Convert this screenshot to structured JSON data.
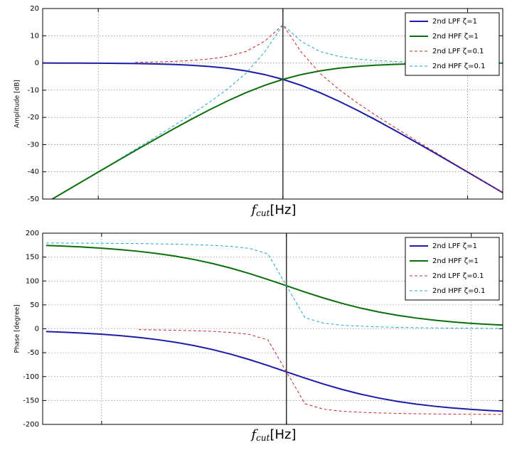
{
  "chart_data": [
    {
      "type": "line",
      "y_label": "Amplitude [dB]",
      "x_label": {
        "symbol": "f",
        "subscript": "cut",
        "unit": "[Hz]"
      },
      "xscale": "log",
      "xlim": [
        0.05,
        15.5
      ],
      "xticks": [
        0.1,
        1,
        10
      ],
      "vline": 1,
      "ylim": [
        -50,
        20
      ],
      "yticks": [
        -50,
        -40,
        -30,
        -20,
        -10,
        0,
        10,
        20
      ],
      "grid": true,
      "legend": "upper right",
      "x": [
        0.05012,
        0.0631,
        0.07943,
        0.1,
        0.1259,
        0.1585,
        0.1995,
        0.2512,
        0.3162,
        0.3981,
        0.5012,
        0.631,
        0.7943,
        1,
        1.259,
        1.585,
        1.995,
        2.512,
        3.162,
        3.981,
        5.012,
        6.31,
        7.943,
        10,
        12.59,
        15.85
      ],
      "series": [
        {
          "name": "2nd LPF ζ=1",
          "color": "#1c1ca8",
          "linestyle": "solid",
          "values": [
            -0.022,
            -0.035,
            -0.055,
            -0.086,
            -0.137,
            -0.215,
            -0.339,
            -0.531,
            -0.828,
            -1.278,
            -1.947,
            -2.911,
            -4.249,
            -6.021,
            -8.249,
            -10.911,
            -13.947,
            -17.278,
            -20.828,
            -24.531,
            -28.339,
            -32.216,
            -36.137,
            -40.086,
            -44.055,
            -48.034
          ]
        },
        {
          "name": "2nd HPF ζ=1",
          "color": "#0a6e0a",
          "linestyle": "solid",
          "values": [
            -52.022,
            -48.035,
            -44.055,
            -40.086,
            -36.137,
            -32.215,
            -28.339,
            -24.532,
            -20.828,
            -17.278,
            -13.947,
            -10.911,
            -8.249,
            -6.021,
            -4.249,
            -2.911,
            -1.947,
            -1.278,
            -0.828,
            -0.531,
            -0.339,
            -0.216,
            -0.137,
            -0.086,
            -0.055,
            -0.034
          ]
        },
        {
          "name": "2nd LPF ζ=0.1",
          "color": "#c62828",
          "linestyle": "dashed",
          "values": [
            null,
            null,
            null,
            null,
            null,
            0.217,
            0.346,
            0.554,
            0.894,
            1.46,
            2.436,
            4.223,
            7.921,
            13.979,
            3.92,
            -3.777,
            -9.565,
            -14.54,
            -19.106,
            -23.446,
            -27.655,
            -31.783,
            -35.864,
            -39.915,
            -43.946,
            -47.966
          ]
        },
        {
          "name": "2nd HPF ζ=0.1",
          "color": "#22a8c8",
          "linestyle": "dashed",
          "values": [
            null,
            null,
            null,
            null,
            -35.864,
            -31.783,
            -27.655,
            -23.446,
            -19.106,
            -14.54,
            -9.565,
            -3.777,
            3.92,
            13.979,
            7.921,
            4.223,
            2.436,
            1.46,
            0.894,
            0.554,
            0.346,
            0.217,
            0.136,
            0.086,
            0.054,
            0.034
          ]
        }
      ]
    },
    {
      "type": "line",
      "y_label": "Phase [degree]",
      "x_label": {
        "symbol": "f",
        "subscript": "cut",
        "unit": "[Hz]"
      },
      "xscale": "log",
      "xlim": [
        0.048,
        14.8
      ],
      "xticks": [
        0.1,
        1,
        10
      ],
      "vline": 1,
      "ylim": [
        -200,
        200
      ],
      "yticks": [
        -200,
        -150,
        -100,
        -50,
        0,
        50,
        100,
        150,
        200
      ],
      "grid": true,
      "legend": "upper right",
      "x": [
        0.05012,
        0.0631,
        0.07943,
        0.1,
        0.1259,
        0.1585,
        0.1995,
        0.2512,
        0.3162,
        0.3981,
        0.5012,
        0.631,
        0.7943,
        1,
        1.259,
        1.585,
        1.995,
        2.512,
        3.162,
        3.981,
        5.012,
        6.31,
        7.943,
        10,
        12.59,
        15.85
      ],
      "series": [
        {
          "name": "2nd LPF ζ=1",
          "color": "#1c1ca8",
          "linestyle": "solid",
          "values": [
            -5.74,
            -7.22,
            -9.08,
            -11.42,
            -14.35,
            -18.01,
            -22.57,
            -28.2,
            -35.1,
            -43.41,
            -53.24,
            -64.5,
            -76.92,
            -90,
            -103.08,
            -115.5,
            -126.76,
            -136.59,
            -144.9,
            -151.8,
            -157.43,
            -161.99,
            -165.65,
            -168.58,
            -170.92,
            -172.78
          ]
        },
        {
          "name": "2nd HPF ζ=1",
          "color": "#0a6e0a",
          "linestyle": "solid",
          "values": [
            174.26,
            172.78,
            170.92,
            168.58,
            165.65,
            161.99,
            157.43,
            151.8,
            144.9,
            136.59,
            126.76,
            115.5,
            103.08,
            90,
            76.92,
            64.5,
            53.24,
            43.41,
            35.1,
            28.2,
            22.57,
            18.01,
            14.35,
            11.42,
            9.08,
            7.22
          ]
        },
        {
          "name": "2nd LPF ζ=0.1",
          "color": "#c62828",
          "linestyle": "dashed",
          "values": [
            null,
            null,
            null,
            null,
            null,
            -1.86,
            -2.38,
            -3.07,
            -4.02,
            -5.4,
            -7.62,
            -11.84,
            -23.29,
            -90,
            -156.71,
            -168.16,
            -172.38,
            -174.6,
            -175.98,
            -176.93,
            -177.62,
            -178.14,
            -178.53,
            -178.84,
            -179.08,
            -179.27
          ]
        },
        {
          "name": "2nd HPF ζ=0.1",
          "color": "#22a8c8",
          "linestyle": "dashed",
          "values": [
            179.42,
            179.27,
            179.08,
            178.84,
            178.53,
            178.14,
            177.62,
            176.93,
            175.98,
            174.6,
            172.38,
            168.16,
            156.71,
            90,
            23.29,
            11.84,
            7.62,
            5.4,
            4.02,
            3.07,
            2.38,
            1.86,
            1.47,
            1.16,
            0.92,
            0.73
          ]
        }
      ]
    }
  ]
}
